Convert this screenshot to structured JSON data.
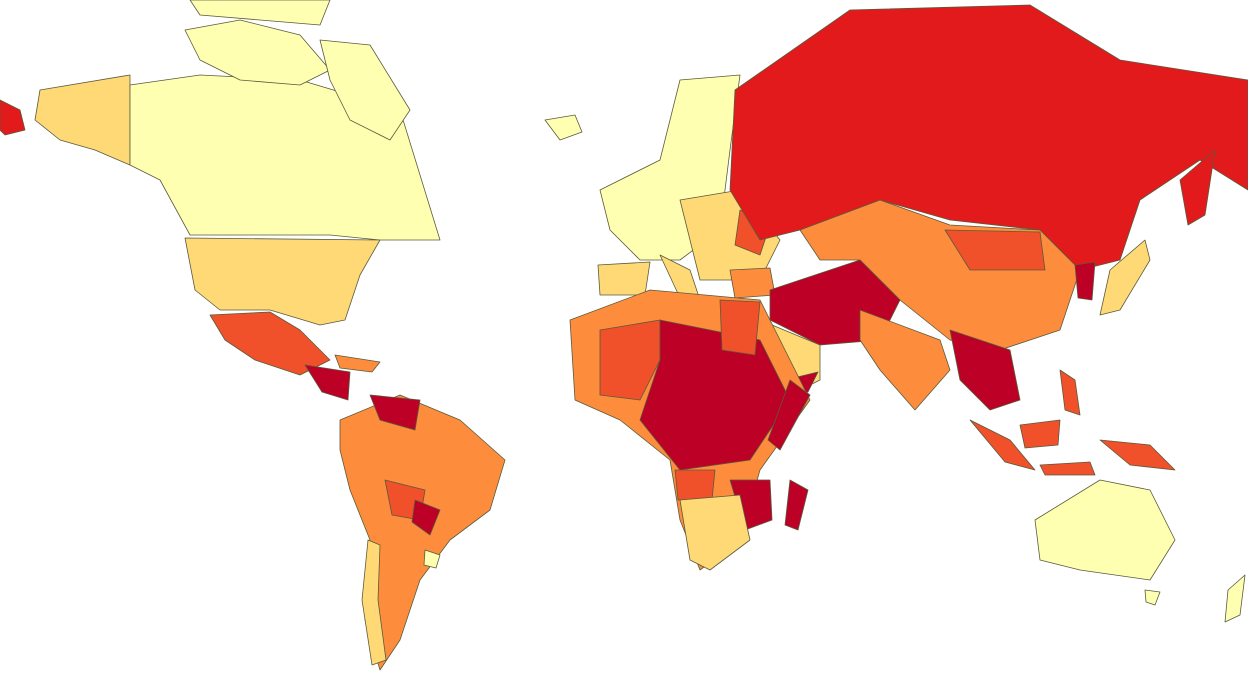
{
  "map": {
    "palette": [
      "#ffffb2",
      "#fed976",
      "#fd8d3c",
      "#f0502a",
      "#e31a1c",
      "#bd0026"
    ]
  }
}
